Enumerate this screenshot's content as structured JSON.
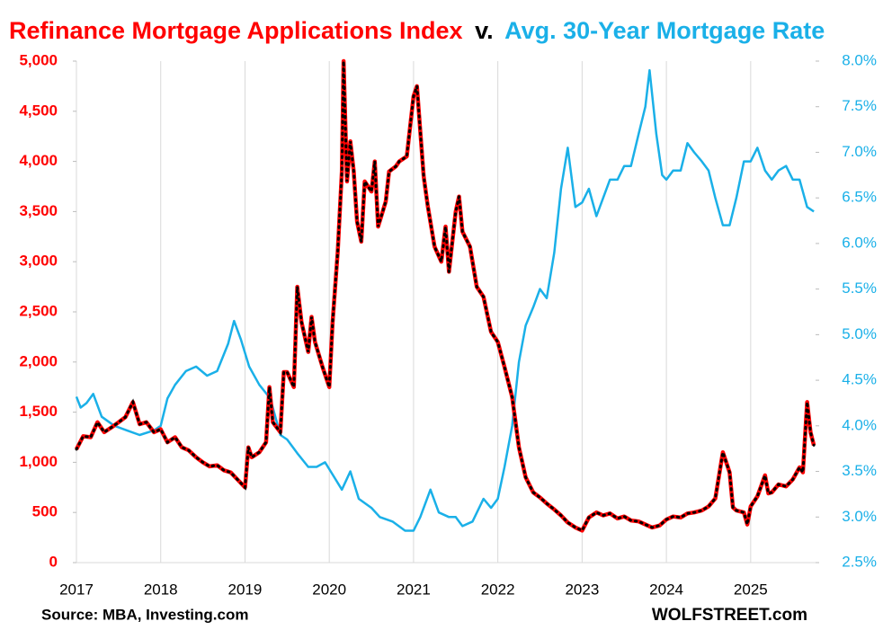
{
  "chart_data": {
    "type": "line",
    "title_separator": "v.",
    "source": "Source: MBA, Investing.com",
    "brand": "WOLFSTREET.com",
    "xlim": [
      2017,
      2025.77
    ],
    "xticks": [
      2017,
      2018,
      2019,
      2020,
      2021,
      2022,
      2023,
      2024,
      2025
    ],
    "ylim": [
      0,
      5000
    ],
    "yticks": [
      0,
      500,
      {
        "value": 1000,
        "label": "1,000"
      },
      {
        "value": 1500,
        "label": "1,500"
      },
      {
        "value": 2000,
        "label": "2,000"
      },
      {
        "value": 2500,
        "label": "2,500"
      },
      {
        "value": 3000,
        "label": "3,000"
      },
      {
        "value": 3500,
        "label": "3,500"
      },
      {
        "value": 4000,
        "label": "4,000"
      },
      {
        "value": 4500,
        "label": "4,500"
      },
      {
        "value": 5000,
        "label": "5,000"
      }
    ],
    "y2lim": [
      2.5,
      8.0
    ],
    "y2ticks": [
      {
        "value": 2.5,
        "label": "2.5%"
      },
      {
        "value": 3.0,
        "label": "3.0%"
      },
      {
        "value": 3.5,
        "label": "3.5%"
      },
      {
        "value": 4.0,
        "label": "4.0%"
      },
      {
        "value": 4.5,
        "label": "4.5%"
      },
      {
        "value": 5.0,
        "label": "5.0%"
      },
      {
        "value": 5.5,
        "label": "5.5%"
      },
      {
        "value": 6.0,
        "label": "6.0%"
      },
      {
        "value": 6.5,
        "label": "6.5%"
      },
      {
        "value": 7.0,
        "label": "7.0%"
      },
      {
        "value": 7.5,
        "label": "7.5%"
      },
      {
        "value": 8.0,
        "label": "8.0%"
      }
    ],
    "grid": "x",
    "series": [
      {
        "name": "Refinance Mortgage Applications Index",
        "color": "#ff0000",
        "marker_color": "#000000",
        "axis": "y",
        "x": [
          2017.0,
          2017.08,
          2017.17,
          2017.25,
          2017.33,
          2017.42,
          2017.5,
          2017.58,
          2017.67,
          2017.75,
          2017.83,
          2017.92,
          2018.0,
          2018.08,
          2018.17,
          2018.25,
          2018.33,
          2018.42,
          2018.5,
          2018.58,
          2018.67,
          2018.75,
          2018.83,
          2018.92,
          2019.0,
          2019.04,
          2019.08,
          2019.17,
          2019.25,
          2019.29,
          2019.33,
          2019.42,
          2019.46,
          2019.5,
          2019.58,
          2019.62,
          2019.67,
          2019.75,
          2019.79,
          2019.83,
          2019.92,
          2020.0,
          2020.04,
          2020.1,
          2020.15,
          2020.17,
          2020.21,
          2020.25,
          2020.29,
          2020.33,
          2020.38,
          2020.42,
          2020.5,
          2020.54,
          2020.58,
          2020.67,
          2020.71,
          2020.79,
          2020.83,
          2020.92,
          2021.0,
          2021.04,
          2021.08,
          2021.12,
          2021.17,
          2021.25,
          2021.33,
          2021.38,
          2021.42,
          2021.5,
          2021.54,
          2021.58,
          2021.67,
          2021.75,
          2021.83,
          2021.92,
          2022.0,
          2022.08,
          2022.17,
          2022.25,
          2022.33,
          2022.42,
          2022.5,
          2022.58,
          2022.67,
          2022.75,
          2022.83,
          2022.92,
          2023.0,
          2023.08,
          2023.17,
          2023.25,
          2023.33,
          2023.42,
          2023.5,
          2023.58,
          2023.67,
          2023.75,
          2023.83,
          2023.92,
          2024.0,
          2024.08,
          2024.17,
          2024.25,
          2024.33,
          2024.42,
          2024.5,
          2024.58,
          2024.67,
          2024.75,
          2024.79,
          2024.83,
          2024.92,
          2024.96,
          2025.0,
          2025.08,
          2025.17,
          2025.21,
          2025.25,
          2025.33,
          2025.42,
          2025.5,
          2025.58,
          2025.62,
          2025.67,
          2025.71,
          2025.75
        ],
        "values": [
          1130,
          1260,
          1250,
          1400,
          1300,
          1350,
          1400,
          1450,
          1600,
          1380,
          1400,
          1300,
          1330,
          1200,
          1250,
          1150,
          1120,
          1050,
          1000,
          960,
          970,
          920,
          900,
          820,
          750,
          1150,
          1050,
          1100,
          1200,
          1750,
          1400,
          1300,
          1900,
          1900,
          1750,
          2750,
          2400,
          2100,
          2450,
          2200,
          1950,
          1750,
          2400,
          3100,
          3900,
          5000,
          3800,
          4200,
          3900,
          3400,
          3200,
          3800,
          3700,
          4000,
          3350,
          3600,
          3900,
          3950,
          4000,
          4050,
          4650,
          4750,
          4300,
          3850,
          3550,
          3150,
          3000,
          3350,
          2900,
          3500,
          3650,
          3300,
          3150,
          2750,
          2650,
          2300,
          2200,
          1950,
          1650,
          1150,
          850,
          700,
          650,
          590,
          530,
          470,
          400,
          350,
          320,
          450,
          500,
          470,
          490,
          440,
          460,
          420,
          410,
          380,
          350,
          370,
          430,
          460,
          450,
          490,
          500,
          520,
          560,
          640,
          1100,
          900,
          550,
          520,
          500,
          380,
          560,
          660,
          870,
          690,
          700,
          780,
          760,
          830,
          950,
          900,
          1600,
          1300,
          1170
        ]
      },
      {
        "name": "Avg. 30-Year Mortgage Rate",
        "color": "#1ab0e8",
        "axis": "y2",
        "x": [
          2017.0,
          2017.05,
          2017.12,
          2017.2,
          2017.3,
          2017.45,
          2017.6,
          2017.75,
          2017.92,
          2018.0,
          2018.08,
          2018.17,
          2018.3,
          2018.42,
          2018.55,
          2018.67,
          2018.8,
          2018.87,
          2018.95,
          2019.05,
          2019.17,
          2019.3,
          2019.42,
          2019.5,
          2019.62,
          2019.75,
          2019.85,
          2019.95,
          2020.05,
          2020.15,
          2020.2,
          2020.25,
          2020.35,
          2020.5,
          2020.6,
          2020.75,
          2020.9,
          2021.0,
          2021.08,
          2021.2,
          2021.3,
          2021.42,
          2021.5,
          2021.58,
          2021.7,
          2021.83,
          2021.92,
          2022.0,
          2022.08,
          2022.17,
          2022.25,
          2022.33,
          2022.42,
          2022.5,
          2022.58,
          2022.67,
          2022.75,
          2022.83,
          2022.92,
          2023.0,
          2023.08,
          2023.17,
          2023.25,
          2023.33,
          2023.42,
          2023.5,
          2023.58,
          2023.67,
          2023.75,
          2023.8,
          2023.88,
          2023.95,
          2024.0,
          2024.08,
          2024.17,
          2024.25,
          2024.33,
          2024.42,
          2024.5,
          2024.58,
          2024.67,
          2024.75,
          2024.83,
          2024.92,
          2025.0,
          2025.08,
          2025.17,
          2025.25,
          2025.33,
          2025.42,
          2025.5,
          2025.58,
          2025.67,
          2025.75
        ],
        "values": [
          4.32,
          4.2,
          4.25,
          4.35,
          4.1,
          4.0,
          3.95,
          3.9,
          3.95,
          4.0,
          4.3,
          4.45,
          4.6,
          4.65,
          4.55,
          4.6,
          4.9,
          5.15,
          4.95,
          4.65,
          4.45,
          4.3,
          3.9,
          3.85,
          3.7,
          3.55,
          3.55,
          3.6,
          3.45,
          3.3,
          3.4,
          3.5,
          3.2,
          3.1,
          3.0,
          2.95,
          2.85,
          2.85,
          3.0,
          3.3,
          3.05,
          3.0,
          3.0,
          2.9,
          2.95,
          3.2,
          3.1,
          3.2,
          3.55,
          4.0,
          4.7,
          5.1,
          5.3,
          5.5,
          5.4,
          5.9,
          6.6,
          7.05,
          6.4,
          6.45,
          6.6,
          6.3,
          6.5,
          6.7,
          6.7,
          6.85,
          6.85,
          7.2,
          7.5,
          7.9,
          7.2,
          6.75,
          6.7,
          6.8,
          6.8,
          7.1,
          7.0,
          6.9,
          6.8,
          6.5,
          6.2,
          6.2,
          6.5,
          6.9,
          6.9,
          7.05,
          6.8,
          6.7,
          6.8,
          6.85,
          6.7,
          6.7,
          6.4,
          6.35
        ]
      }
    ]
  }
}
